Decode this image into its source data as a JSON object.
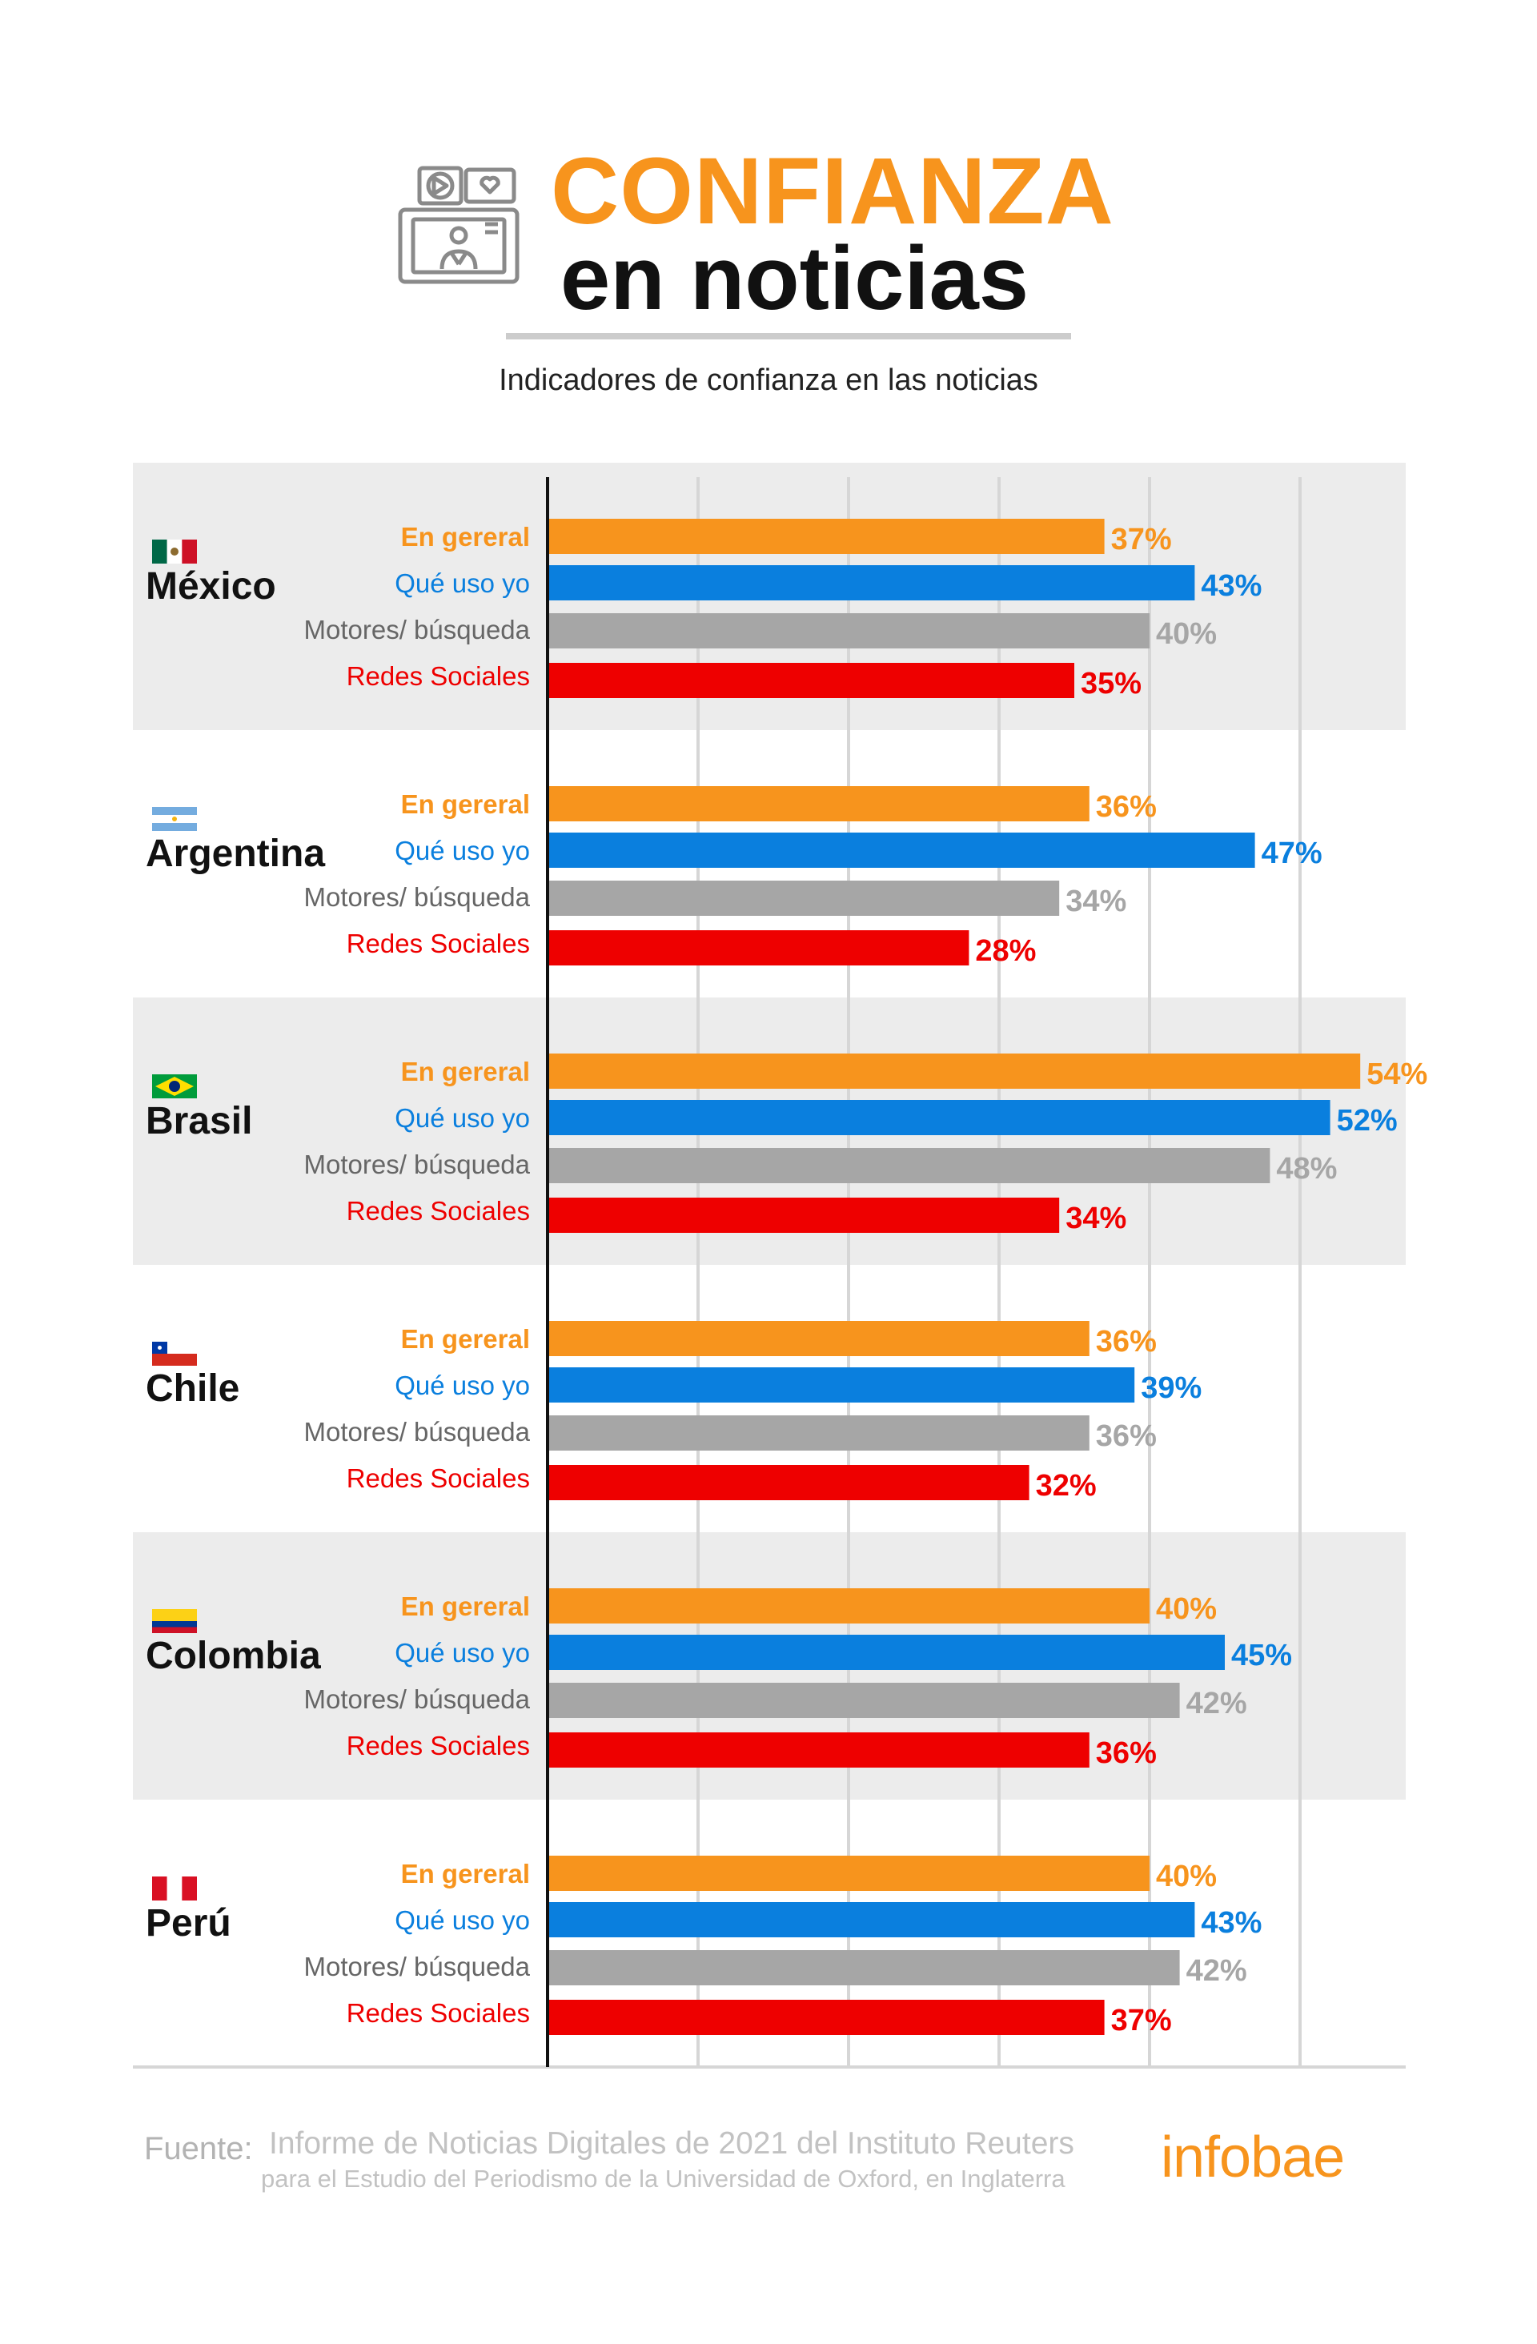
{
  "header": {
    "icon": "news-video-monitor-icon",
    "title_line1": "CONFIANZA",
    "title_line2": "en noticias",
    "subtitle": "Indicadores de confianza en las noticias"
  },
  "colors": {
    "en_general": "#f7941d",
    "que_uso_yo": "#0a7fde",
    "motores": "#a6a6a6",
    "redes": "#ee0000",
    "band": "#ececec",
    "grid": "#d6d6d6",
    "axis": "#111111"
  },
  "chart_data": {
    "type": "bar",
    "orientation": "horizontal",
    "xlim": [
      0,
      54
    ],
    "grid": true,
    "value_suffix": "%",
    "series_labels": [
      "En gereral",
      "Qué uso yo",
      "Motores/ búsqueda",
      "Redes Sociales"
    ],
    "groups": [
      {
        "name": "México",
        "flag": "mexico-flag-icon",
        "values": [
          37,
          43,
          40,
          35
        ]
      },
      {
        "name": "Argentina",
        "flag": "argentina-flag-icon",
        "values": [
          36,
          47,
          34,
          28
        ]
      },
      {
        "name": "Brasil",
        "flag": "brazil-flag-icon",
        "values": [
          54,
          52,
          48,
          34
        ]
      },
      {
        "name": "Chile",
        "flag": "chile-flag-icon",
        "values": [
          36,
          39,
          36,
          32
        ]
      },
      {
        "name": "Colombia",
        "flag": "colombia-flag-icon",
        "values": [
          40,
          45,
          42,
          36
        ]
      },
      {
        "name": "Perú",
        "flag": "peru-flag-icon",
        "values": [
          40,
          43,
          42,
          37
        ]
      }
    ]
  },
  "footer": {
    "source_label": "Fuente:",
    "source_line1": "Informe de Noticias Digitales de 2021 del Instituto Reuters",
    "source_line2": "para el Estudio del Periodismo de la Universidad de Oxford, en Inglaterra",
    "brand": "infobae"
  }
}
